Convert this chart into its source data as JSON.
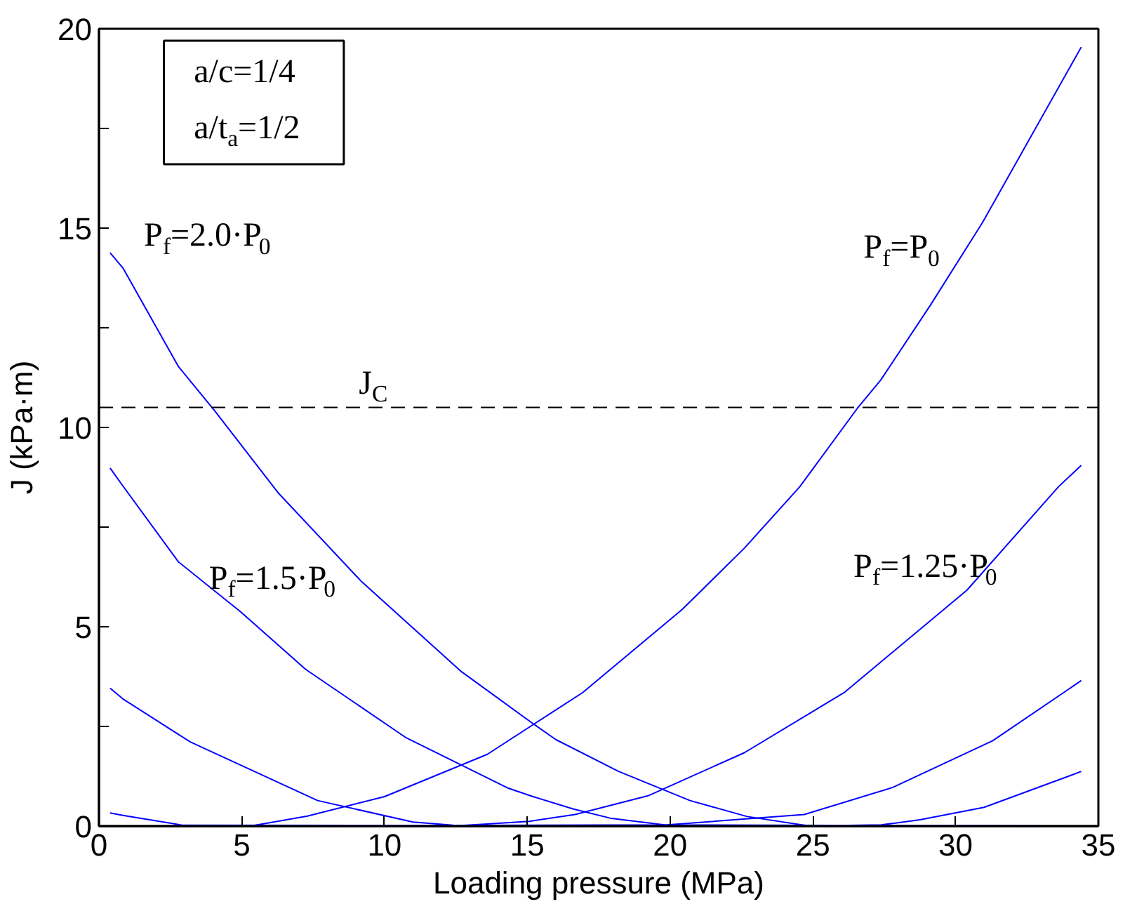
{
  "chart_data": {
    "type": "line",
    "xlabel": "Loading pressure (MPa)",
    "ylabel": "J (kPa·m)",
    "xlim": [
      0,
      35
    ],
    "ylim": [
      0,
      20
    ],
    "xticks": [
      0,
      5,
      10,
      15,
      20,
      25,
      30,
      35
    ],
    "yticks": [
      0,
      {
        "value": 2.5,
        "label": null
      },
      5,
      {
        "value": 7.5,
        "label": null
      },
      10,
      {
        "value": 12.5,
        "label": null
      },
      15,
      {
        "value": 17.5,
        "label": null
      },
      20
    ],
    "grid": false,
    "line_style": "solid",
    "marker": "none",
    "series": [
      {
        "color": "#0000ff",
        "x": [
          0.39,
          0.84,
          2.78,
          4.04,
          6.3,
          9.2,
          12.7,
          15.2,
          16.0,
          18.2,
          20.7,
          22.7,
          24.9,
          34.4
        ],
        "values": [
          14.38,
          14.0,
          11.53,
          10.43,
          8.34,
          6.13,
          3.87,
          2.57,
          2.17,
          1.37,
          0.64,
          0.24,
          0,
          0
        ]
      },
      {
        "color": "#0000ff",
        "x": [
          0.39,
          0.84,
          2.78,
          4.97,
          7.24,
          10.77,
          14.3,
          15.2,
          16.6,
          17.9,
          19.8,
          34.4
        ],
        "values": [
          8.98,
          8.53,
          6.63,
          5.37,
          3.93,
          2.21,
          0.96,
          0.74,
          0.43,
          0.2,
          0.03,
          0
        ]
      },
      {
        "color": "#0000ff",
        "x": [
          0.39,
          0.84,
          3.2,
          7.66,
          11.0,
          12.4,
          34.4
        ],
        "values": [
          3.46,
          3.19,
          2.11,
          0.64,
          0.1,
          0.02,
          0
        ]
      },
      {
        "color": "#0000ff",
        "x": [
          0.39,
          0.84,
          2.95,
          34.4
        ],
        "values": [
          0.33,
          0.27,
          0.02,
          0
        ]
      },
      {
        "color": "#0000ff",
        "x": [
          0.39,
          5.3,
          7.3,
          10.0,
          13.6,
          16.94,
          20.42,
          22.6,
          24.54,
          26.56,
          27.38,
          29.12,
          30.95,
          34.4
        ],
        "values": [
          0,
          0,
          0.25,
          0.74,
          1.8,
          3.35,
          5.43,
          6.97,
          8.51,
          10.48,
          11.19,
          13.07,
          15.15,
          19.54
        ]
      },
      {
        "color": "#0000ff",
        "x": [
          0.39,
          12.4,
          15.07,
          16.67,
          19.23,
          22.6,
          26.1,
          30.4,
          33.6,
          34.4
        ],
        "values": [
          0,
          0,
          0.12,
          0.29,
          0.76,
          1.84,
          3.35,
          5.92,
          8.51,
          9.05
        ]
      },
      {
        "color": "#0000ff",
        "x": [
          0.39,
          19.9,
          24.7,
          27.8,
          31.3,
          34.4
        ],
        "values": [
          0,
          0.03,
          0.29,
          0.97,
          2.14,
          3.65
        ]
      },
      {
        "color": "#0000ff",
        "x": [
          0.39,
          24.7,
          27.4,
          28.75,
          31.0,
          34.4
        ],
        "values": [
          0,
          0,
          0.03,
          0.16,
          0.47,
          1.37
        ]
      }
    ],
    "ref_lines": [
      {
        "axis": "y",
        "value": 10.5,
        "label": "J$_{C}$",
        "color": "#000000",
        "line_style": "dashed"
      }
    ],
    "annotations": [
      "a/c=1/4",
      "a/t$_{a}$=1/2",
      "P$_{f}$=2.0·P$_{0}$",
      "P$_{f}$=1.5·P$_{0}$",
      "P$_{f}$=P$_{0}$",
      "P$_{f}$=1.25·P$_{0}$"
    ]
  }
}
